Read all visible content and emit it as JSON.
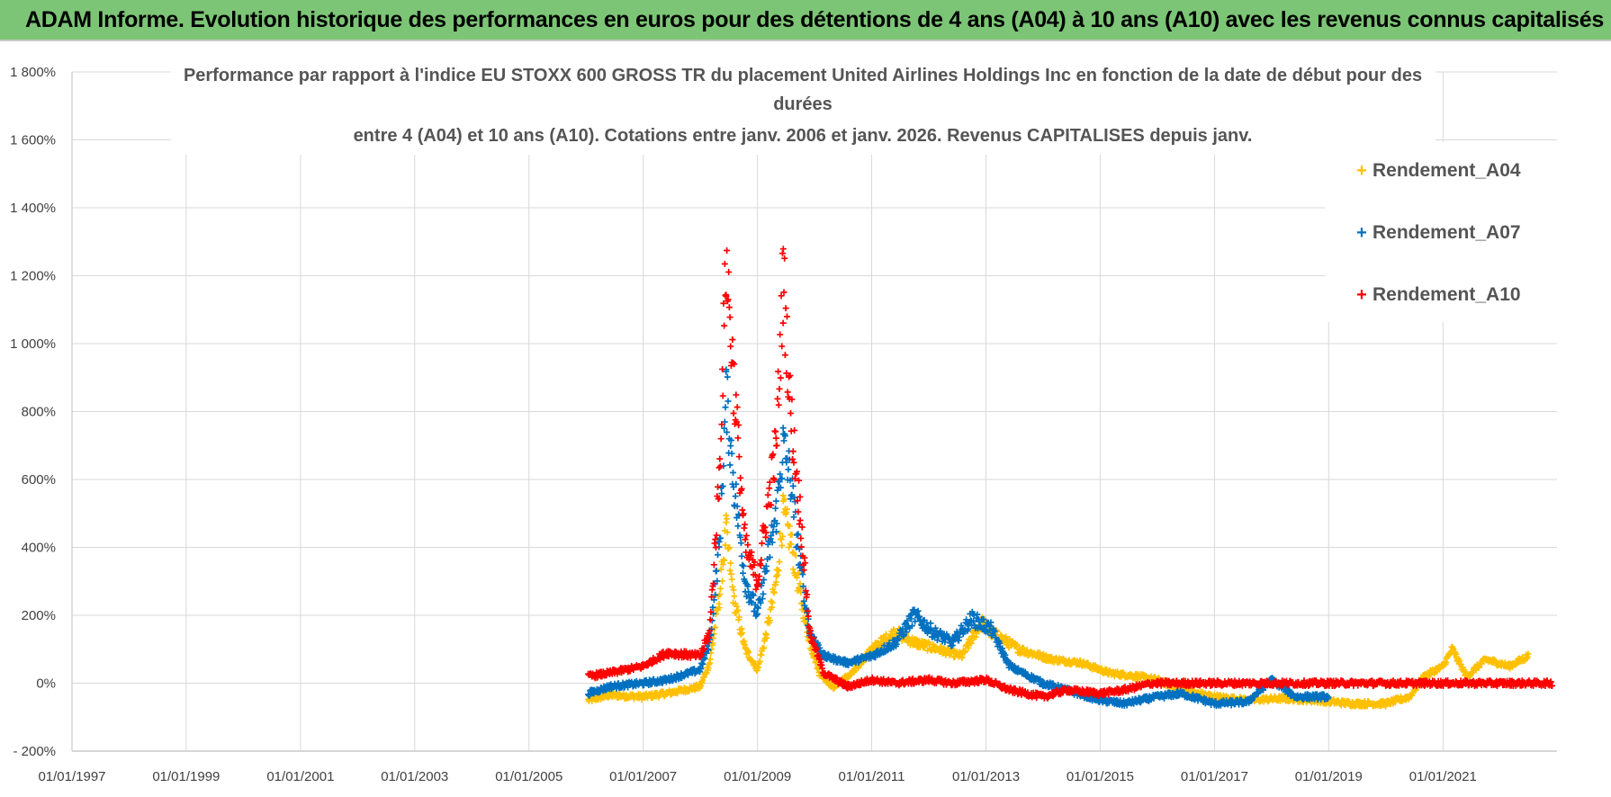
{
  "header": {
    "text": "ADAM Informe. Evolution historique des performances en euros pour des détentions de 4 ans (A04) à 10 ans (A10) avec les revenus connus capitalisés",
    "background": "#7cc576"
  },
  "chart_data": {
    "type": "scatter",
    "title_lines": [
      "Performance par rapport à l'indice EU STOXX 600 GROSS TR  du placement United Airlines Holdings Inc en fonction de la date de début pour des",
      "durées",
      "entre 4 (A04) et 10 ans (A10).  Cotations entre janv. 2006 et janv. 2026. Revenus CAPITALISES depuis janv."
    ],
    "xlabel": "",
    "ylabel": "",
    "x_range": [
      "1997-01-01",
      "2022-12-31"
    ],
    "ylim": [
      -200,
      1800
    ],
    "y_ticks": [
      -200,
      0,
      200,
      400,
      600,
      800,
      1000,
      1200,
      1400,
      1600,
      1800
    ],
    "y_tick_labels": [
      "- 200%",
      "0%",
      "200%",
      "400%",
      "600%",
      "800%",
      "1 000%",
      "1 200%",
      "1 400%",
      "1 600%",
      "1 800%"
    ],
    "x_tick_labels": [
      "01/01/1997",
      "01/01/1999",
      "01/01/2001",
      "01/01/2003",
      "01/01/2005",
      "01/01/2007",
      "01/01/2009",
      "01/01/2011",
      "01/01/2013",
      "01/01/2015",
      "01/01/2017",
      "01/01/2019",
      "01/01/2021"
    ],
    "grid": true,
    "legend_position": "top-right",
    "marker": "+",
    "series": [
      {
        "name": "Rendement_A04",
        "color": "#ffc000",
        "points": [
          [
            "2006-01-15",
            -50
          ],
          [
            "2006-06-01",
            -35
          ],
          [
            "2007-01-01",
            -40
          ],
          [
            "2007-06-01",
            -30
          ],
          [
            "2008-01-01",
            -10
          ],
          [
            "2008-03-01",
            60
          ],
          [
            "2008-05-01",
            250
          ],
          [
            "2008-06-15",
            450
          ],
          [
            "2008-08-01",
            250
          ],
          [
            "2008-10-15",
            100
          ],
          [
            "2009-01-01",
            40
          ],
          [
            "2009-03-01",
            150
          ],
          [
            "2009-05-01",
            300
          ],
          [
            "2009-06-15",
            500
          ],
          [
            "2009-08-01",
            420
          ],
          [
            "2009-10-01",
            260
          ],
          [
            "2009-12-01",
            120
          ],
          [
            "2010-02-01",
            30
          ],
          [
            "2010-05-01",
            -10
          ],
          [
            "2010-09-01",
            30
          ],
          [
            "2011-01-01",
            100
          ],
          [
            "2011-06-01",
            150
          ],
          [
            "2011-10-01",
            120
          ],
          [
            "2012-03-01",
            100
          ],
          [
            "2012-08-01",
            80
          ],
          [
            "2012-12-01",
            180
          ],
          [
            "2013-02-01",
            150
          ],
          [
            "2013-08-01",
            100
          ],
          [
            "2014-03-01",
            70
          ],
          [
            "2014-09-01",
            60
          ],
          [
            "2015-03-01",
            30
          ],
          [
            "2015-09-01",
            20
          ],
          [
            "2016-01-01",
            10
          ],
          [
            "2016-06-01",
            -20
          ],
          [
            "2017-01-01",
            -40
          ],
          [
            "2017-08-01",
            -50
          ],
          [
            "2018-03-01",
            -45
          ],
          [
            "2018-10-01",
            -50
          ],
          [
            "2019-06-01",
            -60
          ],
          [
            "2020-01-01",
            -60
          ],
          [
            "2020-06-01",
            -40
          ],
          [
            "2020-09-01",
            20
          ],
          [
            "2021-01-01",
            50
          ],
          [
            "2021-03-01",
            100
          ],
          [
            "2021-06-01",
            20
          ],
          [
            "2021-10-01",
            70
          ],
          [
            "2022-03-01",
            50
          ],
          [
            "2022-07-01",
            80
          ]
        ]
      },
      {
        "name": "Rendement_A07",
        "color": "#0070c0",
        "points": [
          [
            "2006-01-15",
            -30
          ],
          [
            "2006-06-01",
            -10
          ],
          [
            "2007-01-01",
            0
          ],
          [
            "2007-06-01",
            10
          ],
          [
            "2008-01-01",
            40
          ],
          [
            "2008-03-01",
            120
          ],
          [
            "2008-05-01",
            400
          ],
          [
            "2008-06-15",
            850
          ],
          [
            "2008-08-01",
            600
          ],
          [
            "2008-10-15",
            300
          ],
          [
            "2009-01-01",
            200
          ],
          [
            "2009-03-01",
            350
          ],
          [
            "2009-05-01",
            500
          ],
          [
            "2009-06-15",
            700
          ],
          [
            "2009-08-01",
            600
          ],
          [
            "2009-10-01",
            350
          ],
          [
            "2009-12-01",
            150
          ],
          [
            "2010-03-01",
            80
          ],
          [
            "2010-08-01",
            60
          ],
          [
            "2011-01-01",
            80
          ],
          [
            "2011-06-01",
            120
          ],
          [
            "2011-10-01",
            200
          ],
          [
            "2012-02-01",
            150
          ],
          [
            "2012-06-01",
            120
          ],
          [
            "2012-10-01",
            190
          ],
          [
            "2013-02-01",
            160
          ],
          [
            "2013-06-01",
            50
          ],
          [
            "2014-01-01",
            0
          ],
          [
            "2014-06-01",
            -20
          ],
          [
            "2015-01-01",
            -50
          ],
          [
            "2015-06-01",
            -60
          ],
          [
            "2016-01-01",
            -40
          ],
          [
            "2016-06-01",
            -30
          ],
          [
            "2017-01-01",
            -60
          ],
          [
            "2017-08-01",
            -55
          ],
          [
            "2018-01-01",
            10
          ],
          [
            "2018-06-01",
            -40
          ],
          [
            "2019-01-01",
            -40
          ]
        ]
      },
      {
        "name": "Rendement_A10",
        "color": "#ff0000",
        "points": [
          [
            "2006-01-15",
            20
          ],
          [
            "2006-06-01",
            30
          ],
          [
            "2007-01-01",
            50
          ],
          [
            "2007-06-01",
            90
          ],
          [
            "2008-01-01",
            80
          ],
          [
            "2008-03-01",
            150
          ],
          [
            "2008-05-01",
            600
          ],
          [
            "2008-06-15",
            1250
          ],
          [
            "2008-08-01",
            900
          ],
          [
            "2008-10-15",
            400
          ],
          [
            "2009-01-01",
            300
          ],
          [
            "2009-03-01",
            500
          ],
          [
            "2009-05-01",
            700
          ],
          [
            "2009-06-15",
            1200
          ],
          [
            "2009-08-01",
            800
          ],
          [
            "2009-10-01",
            500
          ],
          [
            "2009-12-01",
            150
          ],
          [
            "2010-03-01",
            30
          ],
          [
            "2010-08-01",
            -10
          ],
          [
            "2011-01-01",
            10
          ],
          [
            "2011-06-01",
            0
          ],
          [
            "2012-01-01",
            10
          ],
          [
            "2012-06-01",
            0
          ],
          [
            "2013-01-01",
            10
          ],
          [
            "2013-06-01",
            -20
          ],
          [
            "2014-01-01",
            -40
          ],
          [
            "2014-06-01",
            -20
          ],
          [
            "2015-01-01",
            -30
          ],
          [
            "2015-06-01",
            -20
          ],
          [
            "2015-12-01",
            0
          ],
          [
            "2016-06-01",
            0
          ],
          [
            "2018-01-01",
            0
          ],
          [
            "2020-01-01",
            0
          ],
          [
            "2022-12-01",
            0
          ]
        ]
      }
    ]
  }
}
